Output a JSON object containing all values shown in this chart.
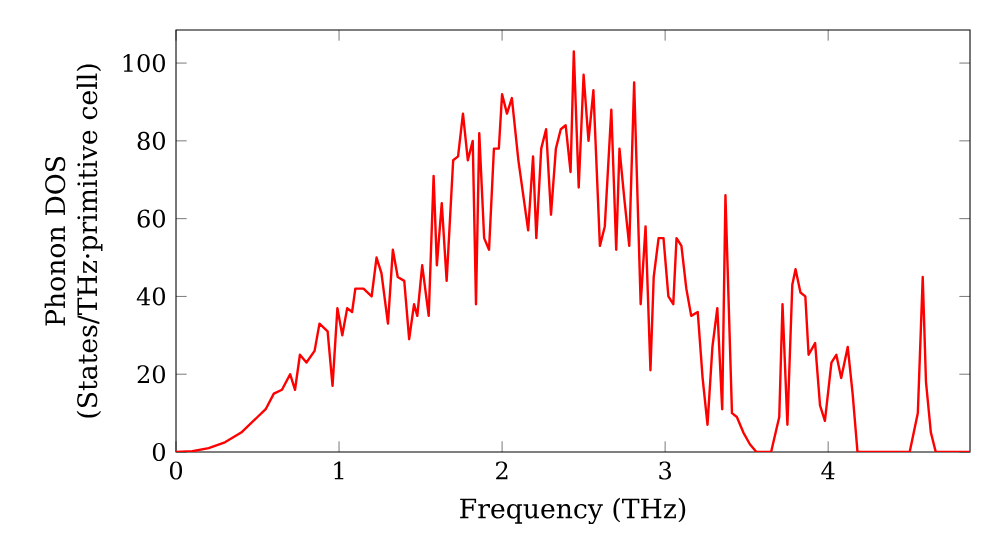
{
  "chart_data": {
    "type": "line",
    "xlabel": "Frequency (THz)",
    "ylabel": "Phonon DOS (States/THz·primitive cell)",
    "xlim": [
      0,
      4.87
    ],
    "ylim": [
      0,
      108.5
    ],
    "xticks": [
      0,
      1,
      2,
      3,
      4
    ],
    "yticks": [
      0,
      20,
      40,
      60,
      80,
      100
    ],
    "grid": false,
    "marker": "none",
    "line_style": "solid",
    "series": [
      {
        "color": "#ff0000",
        "x": [
          0,
          0.1,
          0.2,
          0.3,
          0.4,
          0.5,
          0.55,
          0.6,
          0.65,
          0.7,
          0.73,
          0.76,
          0.8,
          0.85,
          0.88,
          0.93,
          0.96,
          0.99,
          1.02,
          1.05,
          1.08,
          1.1,
          1.15,
          1.2,
          1.23,
          1.26,
          1.3,
          1.33,
          1.36,
          1.4,
          1.43,
          1.46,
          1.48,
          1.51,
          1.55,
          1.58,
          1.6,
          1.63,
          1.66,
          1.7,
          1.73,
          1.76,
          1.79,
          1.82,
          1.84,
          1.86,
          1.89,
          1.92,
          1.95,
          1.98,
          2.0,
          2.03,
          2.06,
          2.1,
          2.13,
          2.16,
          2.19,
          2.21,
          2.24,
          2.27,
          2.3,
          2.33,
          2.36,
          2.39,
          2.42,
          2.44,
          2.47,
          2.5,
          2.53,
          2.56,
          2.6,
          2.63,
          2.67,
          2.7,
          2.72,
          2.75,
          2.78,
          2.81,
          2.85,
          2.88,
          2.91,
          2.93,
          2.96,
          2.99,
          3.02,
          3.05,
          3.07,
          3.1,
          3.13,
          3.16,
          3.2,
          3.23,
          3.26,
          3.29,
          3.32,
          3.35,
          3.37,
          3.41,
          3.44,
          3.48,
          3.52,
          3.56,
          3.65,
          3.7,
          3.72,
          3.75,
          3.78,
          3.8,
          3.83,
          3.86,
          3.88,
          3.92,
          3.95,
          3.98,
          4.02,
          4.05,
          4.08,
          4.12,
          4.15,
          4.18,
          4.5,
          4.55,
          4.58,
          4.6,
          4.63,
          4.66,
          4.87
        ],
        "values": [
          0,
          0.2,
          1,
          2.5,
          5,
          9,
          11,
          15,
          16,
          20,
          16,
          25,
          23,
          26,
          33,
          31,
          17,
          37,
          30,
          37,
          36,
          42,
          42,
          40,
          50,
          46,
          33,
          52,
          45,
          44,
          29,
          38,
          35,
          48,
          35,
          71,
          48,
          64,
          44,
          75,
          76,
          87,
          75,
          80,
          38,
          82,
          55,
          52,
          78,
          78,
          92,
          87,
          91,
          75,
          66,
          57,
          76,
          55,
          78,
          83,
          61,
          78,
          83,
          84,
          72,
          103,
          68,
          97,
          80,
          93,
          53,
          58,
          88,
          52,
          78,
          65,
          53,
          95,
          38,
          58,
          21,
          45,
          55,
          55,
          40,
          38,
          55,
          53,
          42,
          35,
          36,
          19,
          7,
          27,
          37,
          11,
          66,
          10,
          9,
          5,
          2,
          0,
          0,
          9,
          38,
          7,
          43,
          47,
          41,
          40,
          25,
          28,
          12,
          8,
          23,
          25,
          19,
          27,
          15,
          0,
          0,
          10,
          45,
          18,
          5,
          0,
          0
        ]
      }
    ]
  }
}
